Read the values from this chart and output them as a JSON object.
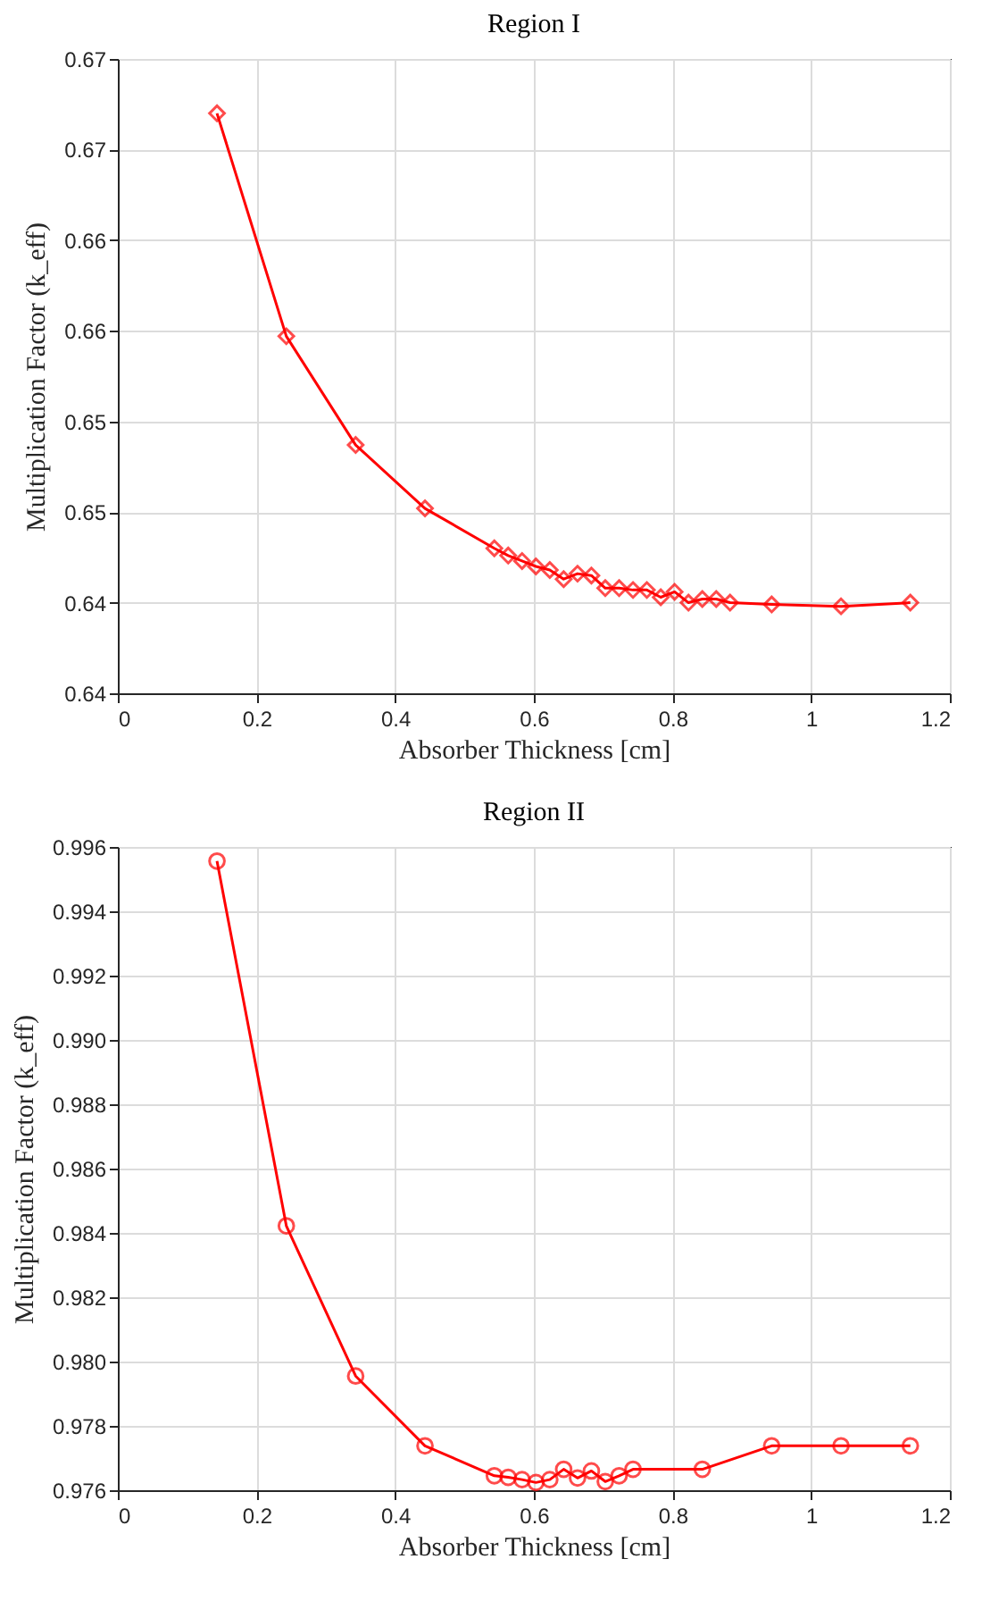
{
  "chart_data": [
    {
      "type": "line",
      "title": "Region I",
      "xlabel": "Absorber Thickness [cm]",
      "ylabel": "Multiplication Factor (k_eff)",
      "x": [
        0.143,
        0.243,
        0.343,
        0.443,
        0.543,
        0.563,
        0.583,
        0.603,
        0.623,
        0.643,
        0.663,
        0.683,
        0.703,
        0.723,
        0.743,
        0.763,
        0.783,
        0.803,
        0.823,
        0.843,
        0.863,
        0.883,
        0.943,
        1.043,
        1.143
      ],
      "series": [
        {
          "color": "#ff0000",
          "values": [
            0.667,
            0.6547,
            0.6487,
            0.6452,
            0.643,
            0.6426,
            0.6423,
            0.642,
            0.6418,
            0.6413,
            0.6416,
            0.6415,
            0.6408,
            0.6408,
            0.6407,
            0.6407,
            0.6403,
            0.6406,
            0.64,
            0.6402,
            0.6402,
            0.64,
            0.6399,
            0.6398,
            0.64
          ]
        }
      ],
      "xlim": [
        0,
        1.2
      ],
      "xticks": [
        0,
        0.2,
        0.4,
        0.6,
        0.8,
        1,
        1.2
      ],
      "ylim": [
        0.635,
        0.67
      ],
      "yticks": [
        {
          "value": 0.635,
          "label": "0.64"
        },
        {
          "value": 0.64,
          "label": "0.64"
        },
        {
          "value": 0.645,
          "label": "0.65"
        },
        {
          "value": 0.65,
          "label": "0.65"
        },
        {
          "value": 0.655,
          "label": "0.66"
        },
        {
          "value": 0.66,
          "label": "0.66"
        },
        {
          "value": 0.665,
          "label": "0.67"
        },
        {
          "value": 0.67,
          "label": "0.67"
        }
      ],
      "grid": true,
      "marker": "diamond",
      "line_style": "solid"
    },
    {
      "type": "line",
      "title": "Region II",
      "xlabel": "Absorber Thickness [cm]",
      "ylabel": "Multiplication Factor (k_eff)",
      "x": [
        0.143,
        0.243,
        0.343,
        0.443,
        0.543,
        0.563,
        0.583,
        0.603,
        0.623,
        0.643,
        0.663,
        0.683,
        0.703,
        0.723,
        0.743,
        0.843,
        0.943,
        1.043,
        1.143
      ],
      "series": [
        {
          "color": "#ff0000",
          "values": [
            0.99556,
            0.98422,
            0.97955,
            0.97738,
            0.97645,
            0.9764,
            0.97633,
            0.97624,
            0.97633,
            0.97665,
            0.97638,
            0.9766,
            0.97627,
            0.97645,
            0.97665,
            0.97665,
            0.97738,
            0.97738,
            0.97738
          ]
        }
      ],
      "xlim": [
        0,
        1.2
      ],
      "xticks": [
        0,
        0.2,
        0.4,
        0.6,
        0.8,
        1,
        1.2
      ],
      "ylim": [
        0.976,
        0.996
      ],
      "yticks": [
        {
          "value": 0.976,
          "label": "0.976"
        },
        {
          "value": 0.978,
          "label": "0.978"
        },
        {
          "value": 0.98,
          "label": "0.980"
        },
        {
          "value": 0.982,
          "label": "0.982"
        },
        {
          "value": 0.984,
          "label": "0.984"
        },
        {
          "value": 0.986,
          "label": "0.986"
        },
        {
          "value": 0.988,
          "label": "0.988"
        },
        {
          "value": 0.99,
          "label": "0.990"
        },
        {
          "value": 0.992,
          "label": "0.992"
        },
        {
          "value": 0.994,
          "label": "0.994"
        },
        {
          "value": 0.996,
          "label": "0.996"
        }
      ],
      "grid": true,
      "marker": "circle",
      "line_style": "solid"
    }
  ]
}
